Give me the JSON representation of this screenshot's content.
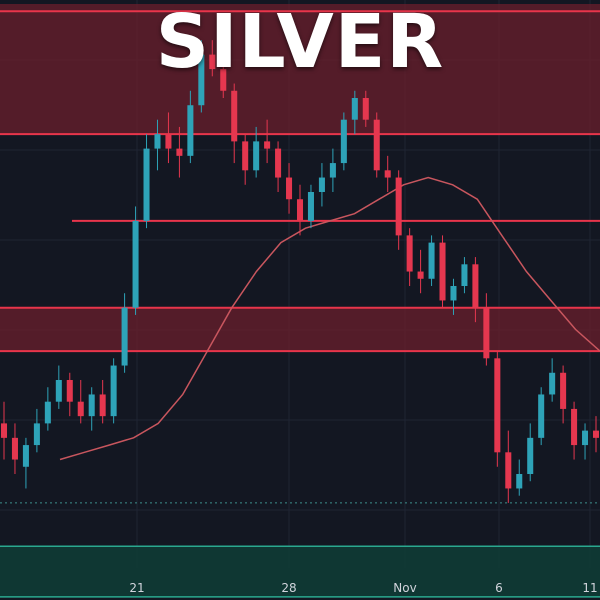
{
  "colors": {
    "background": "#131722",
    "up_candle": "#2ea3b8",
    "down_candle": "#e5374f",
    "resistance_line": "#e8354b",
    "resistance_zone": "#6b1f2c",
    "support_zone": "#103b35",
    "support_border": "#2aa88f",
    "moving_average": "#c8565e",
    "grid": "#1f2433",
    "dotted_level": "#3d8f8c"
  },
  "chart_data": {
    "type": "candlestick",
    "title": "SILVER",
    "xlabel": "",
    "ylabel": "",
    "grid": true,
    "x_tick_labels": [
      "21",
      "28",
      "Nov",
      "6",
      "11"
    ],
    "ylim": [
      20.3,
      24.2
    ],
    "horizontal_levels": [
      24.15,
      23.3,
      22.7,
      22.1,
      21.8
    ],
    "dotted_levels": [
      20.75
    ],
    "resistance_zones": [
      [
        23.3,
        24.2
      ],
      [
        21.8,
        22.1
      ]
    ],
    "support_zone": [
      20.1,
      20.45
    ],
    "moving_average": [
      21.05,
      21.1,
      21.15,
      21.2,
      21.3,
      21.5,
      21.8,
      22.1,
      22.35,
      22.55,
      22.65,
      22.7,
      22.75,
      22.85,
      22.95,
      23.0,
      22.95,
      22.85,
      22.6,
      22.35,
      22.15,
      21.95,
      21.8
    ],
    "candles": [
      {
        "o": 21.3,
        "h": 21.45,
        "l": 21.05,
        "c": 21.2
      },
      {
        "o": 21.2,
        "h": 21.3,
        "l": 20.95,
        "c": 21.05
      },
      {
        "o": 21.0,
        "h": 21.2,
        "l": 20.85,
        "c": 21.15
      },
      {
        "o": 21.15,
        "h": 21.4,
        "l": 21.1,
        "c": 21.3
      },
      {
        "o": 21.3,
        "h": 21.55,
        "l": 21.25,
        "c": 21.45
      },
      {
        "o": 21.45,
        "h": 21.7,
        "l": 21.4,
        "c": 21.6
      },
      {
        "o": 21.6,
        "h": 21.65,
        "l": 21.35,
        "c": 21.45
      },
      {
        "o": 21.45,
        "h": 21.6,
        "l": 21.3,
        "c": 21.35
      },
      {
        "o": 21.35,
        "h": 21.55,
        "l": 21.25,
        "c": 21.5
      },
      {
        "o": 21.5,
        "h": 21.6,
        "l": 21.3,
        "c": 21.35
      },
      {
        "o": 21.35,
        "h": 21.75,
        "l": 21.3,
        "c": 21.7
      },
      {
        "o": 21.7,
        "h": 22.2,
        "l": 21.65,
        "c": 22.1
      },
      {
        "o": 22.1,
        "h": 22.8,
        "l": 22.05,
        "c": 22.7
      },
      {
        "o": 22.7,
        "h": 23.3,
        "l": 22.65,
        "c": 23.2
      },
      {
        "o": 23.2,
        "h": 23.4,
        "l": 23.05,
        "c": 23.3
      },
      {
        "o": 23.3,
        "h": 23.45,
        "l": 23.1,
        "c": 23.2
      },
      {
        "o": 23.2,
        "h": 23.35,
        "l": 23.0,
        "c": 23.15
      },
      {
        "o": 23.15,
        "h": 23.6,
        "l": 23.1,
        "c": 23.5
      },
      {
        "o": 23.5,
        "h": 23.95,
        "l": 23.45,
        "c": 23.85
      },
      {
        "o": 23.85,
        "h": 23.95,
        "l": 23.7,
        "c": 23.75
      },
      {
        "o": 23.75,
        "h": 23.85,
        "l": 23.55,
        "c": 23.6
      },
      {
        "o": 23.6,
        "h": 23.65,
        "l": 23.1,
        "c": 23.25
      },
      {
        "o": 23.25,
        "h": 23.3,
        "l": 22.95,
        "c": 23.05
      },
      {
        "o": 23.05,
        "h": 23.35,
        "l": 23.0,
        "c": 23.25
      },
      {
        "o": 23.25,
        "h": 23.4,
        "l": 23.1,
        "c": 23.2
      },
      {
        "o": 23.2,
        "h": 23.25,
        "l": 22.9,
        "c": 23.0
      },
      {
        "o": 23.0,
        "h": 23.1,
        "l": 22.75,
        "c": 22.85
      },
      {
        "o": 22.85,
        "h": 22.95,
        "l": 22.6,
        "c": 22.7
      },
      {
        "o": 22.7,
        "h": 22.95,
        "l": 22.65,
        "c": 22.9
      },
      {
        "o": 22.9,
        "h": 23.1,
        "l": 22.8,
        "c": 23.0
      },
      {
        "o": 23.0,
        "h": 23.2,
        "l": 22.9,
        "c": 23.1
      },
      {
        "o": 23.1,
        "h": 23.45,
        "l": 23.05,
        "c": 23.4
      },
      {
        "o": 23.4,
        "h": 23.6,
        "l": 23.3,
        "c": 23.55
      },
      {
        "o": 23.55,
        "h": 23.6,
        "l": 23.35,
        "c": 23.4
      },
      {
        "o": 23.4,
        "h": 23.45,
        "l": 23.0,
        "c": 23.05
      },
      {
        "o": 23.05,
        "h": 23.15,
        "l": 22.9,
        "c": 23.0
      },
      {
        "o": 23.0,
        "h": 23.05,
        "l": 22.5,
        "c": 22.6
      },
      {
        "o": 22.6,
        "h": 22.65,
        "l": 22.25,
        "c": 22.35
      },
      {
        "o": 22.35,
        "h": 22.5,
        "l": 22.2,
        "c": 22.3
      },
      {
        "o": 22.3,
        "h": 22.6,
        "l": 22.25,
        "c": 22.55
      },
      {
        "o": 22.55,
        "h": 22.6,
        "l": 22.1,
        "c": 22.15
      },
      {
        "o": 22.15,
        "h": 22.3,
        "l": 22.05,
        "c": 22.25
      },
      {
        "o": 22.25,
        "h": 22.45,
        "l": 22.2,
        "c": 22.4
      },
      {
        "o": 22.4,
        "h": 22.45,
        "l": 22.0,
        "c": 22.1
      },
      {
        "o": 22.1,
        "h": 22.2,
        "l": 21.7,
        "c": 21.75
      },
      {
        "o": 21.75,
        "h": 21.8,
        "l": 21.0,
        "c": 21.1
      },
      {
        "o": 21.1,
        "h": 21.25,
        "l": 20.75,
        "c": 20.85
      },
      {
        "o": 20.85,
        "h": 21.05,
        "l": 20.8,
        "c": 20.95
      },
      {
        "o": 20.95,
        "h": 21.3,
        "l": 20.9,
        "c": 21.2
      },
      {
        "o": 21.2,
        "h": 21.55,
        "l": 21.15,
        "c": 21.5
      },
      {
        "o": 21.5,
        "h": 21.75,
        "l": 21.45,
        "c": 21.65
      },
      {
        "o": 21.65,
        "h": 21.7,
        "l": 21.3,
        "c": 21.4
      },
      {
        "o": 21.4,
        "h": 21.45,
        "l": 21.05,
        "c": 21.15
      },
      {
        "o": 21.15,
        "h": 21.3,
        "l": 21.05,
        "c": 21.25
      },
      {
        "o": 21.25,
        "h": 21.35,
        "l": 21.1,
        "c": 21.2
      }
    ]
  }
}
